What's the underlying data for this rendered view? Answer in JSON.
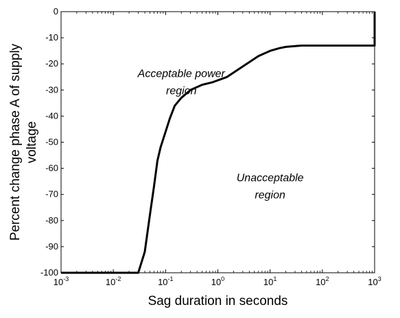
{
  "chart_data": {
    "type": "line",
    "xscale": "log",
    "xlim": [
      0.001,
      1000
    ],
    "ylim": [
      -100,
      0
    ],
    "grid": false,
    "xlabel": "Sag duration in seconds",
    "ylabel_lines": [
      "Percent change  phase A  of supply",
      "voltage"
    ],
    "x_ticks": [
      {
        "base": "10",
        "exp": "-3",
        "value": 0.001
      },
      {
        "base": "10",
        "exp": "-2",
        "value": 0.01
      },
      {
        "base": "10",
        "exp": "-1",
        "value": 0.1
      },
      {
        "base": "10",
        "exp": "0",
        "value": 1
      },
      {
        "base": "10",
        "exp": "1",
        "value": 10
      },
      {
        "base": "10",
        "exp": "2",
        "value": 100
      },
      {
        "base": "10",
        "exp": "3",
        "value": 1000
      }
    ],
    "y_ticks": [
      0,
      -10,
      -20,
      -30,
      -40,
      -50,
      -60,
      -70,
      -80,
      -90,
      -100
    ],
    "annotations": [
      {
        "lines": [
          "Acceptable power",
          "region"
        ],
        "x": 0.2,
        "y": -25
      },
      {
        "lines": [
          "Unacceptable",
          "region"
        ],
        "x": 10,
        "y": -65
      }
    ],
    "series": [
      {
        "x": [
          0.001,
          0.03,
          0.04,
          0.05,
          0.06,
          0.07,
          0.08,
          0.1,
          0.12,
          0.15,
          0.2,
          0.3,
          0.5,
          0.8,
          1.5,
          3,
          6,
          10,
          15,
          20,
          40,
          1000,
          1000
        ],
        "y": [
          -100,
          -100,
          -92,
          -78,
          -67,
          -57,
          -52,
          -46,
          -41,
          -36,
          -33,
          -30,
          -28,
          -27,
          -25,
          -21,
          -17,
          -15,
          -14,
          -13.5,
          -13,
          -13,
          0
        ]
      }
    ]
  }
}
